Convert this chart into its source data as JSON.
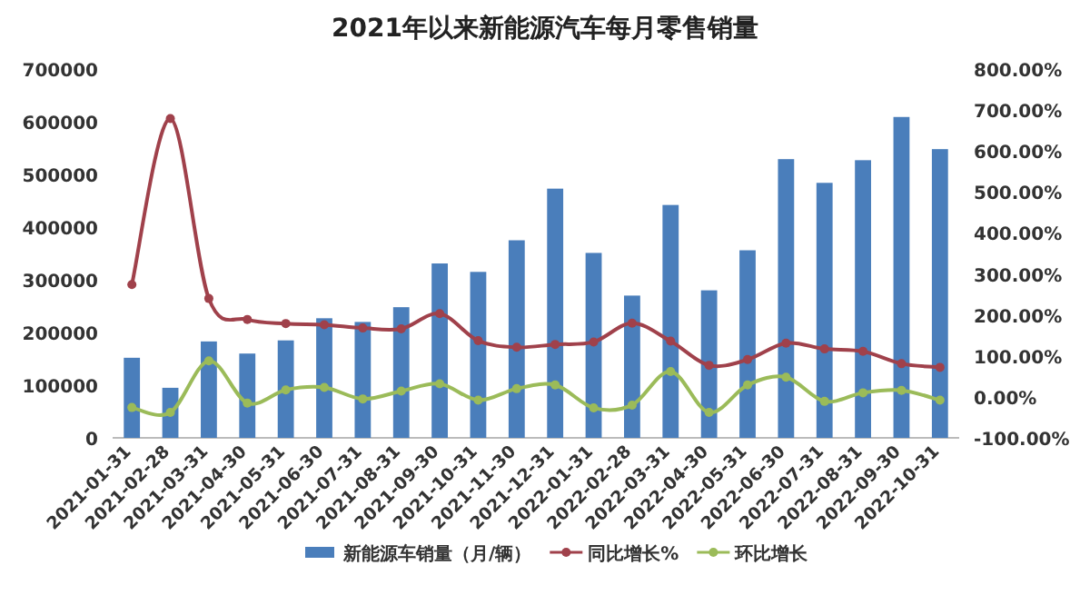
{
  "chart_data": {
    "type": "bar",
    "title": "2021年以来新能源汽车每月零售销量",
    "categories": [
      "2021-01-31",
      "2021-02-28",
      "2021-03-31",
      "2021-04-30",
      "2021-05-31",
      "2021-06-30",
      "2021-07-31",
      "2021-08-31",
      "2021-09-30",
      "2021-10-31",
      "2021-11-30",
      "2021-12-31",
      "2022-01-31",
      "2022-02-28",
      "2022-03-31",
      "2022-04-30",
      "2022-05-31",
      "2022-06-30",
      "2022-07-31",
      "2022-08-31",
      "2022-09-30",
      "2022-10-31"
    ],
    "series": [
      {
        "name": "新能源车销量（月/辆）",
        "color": "#4a7ebb",
        "values": [
          152000,
          95000,
          183000,
          160000,
          185000,
          227000,
          220000,
          248000,
          331000,
          315000,
          375000,
          473000,
          351000,
          270000,
          442000,
          280000,
          356000,
          529000,
          484000,
          527000,
          609000,
          548000
        ]
      },
      {
        "name": "同比增长%",
        "type": "line",
        "axis": "y2",
        "color": "#a0414b",
        "values": [
          274,
          679,
          240,
          189,
          179,
          176,
          168,
          166,
          203,
          137,
          121,
          128,
          134,
          180,
          136,
          77,
          91,
          131,
          117,
          111,
          81,
          72
        ]
      },
      {
        "name": "环比增长",
        "type": "line",
        "axis": "y2",
        "color": "#9bbb59",
        "values": [
          -26,
          -38,
          88,
          -15,
          17,
          23,
          -5,
          14,
          32,
          -8,
          20,
          29,
          -27,
          -20,
          62,
          -38,
          29,
          48,
          -11,
          10,
          16,
          -8
        ]
      }
    ],
    "ylim": [
      0,
      700000
    ],
    "yticks": [
      0,
      100000,
      200000,
      300000,
      400000,
      500000,
      600000,
      700000
    ],
    "y2lim": [
      -100,
      800
    ],
    "y2ticks": [
      {
        "value": -100,
        "label": "-100.00%"
      },
      {
        "value": 0,
        "label": "0.00%"
      },
      {
        "value": 100,
        "label": "100.00%"
      },
      {
        "value": 200,
        "label": "200.00%"
      },
      {
        "value": 300,
        "label": "300.00%"
      },
      {
        "value": 400,
        "label": "400.00%"
      },
      {
        "value": 500,
        "label": "500.00%"
      },
      {
        "value": 600,
        "label": "600.00%"
      },
      {
        "value": 700,
        "label": "700.00%"
      },
      {
        "value": 800,
        "label": "800.00%"
      }
    ],
    "marker": "circle",
    "legend": "bottom",
    "grid": false
  }
}
